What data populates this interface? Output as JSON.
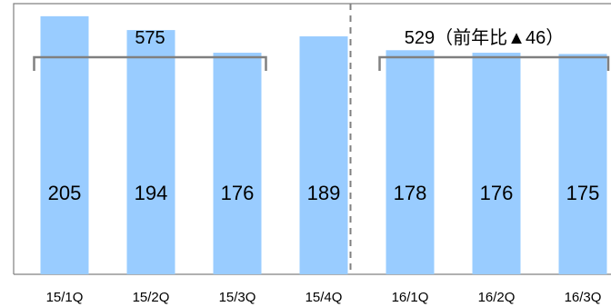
{
  "chart_data": {
    "type": "bar",
    "categories": [
      "15/1Q",
      "15/2Q",
      "15/3Q",
      "15/4Q",
      "16/1Q",
      "16/2Q",
      "16/3Q"
    ],
    "values": [
      205,
      194,
      176,
      189,
      178,
      176,
      175
    ],
    "ylim": [
      0,
      215
    ],
    "grid": false,
    "bar_color": "#99CCFF",
    "groups": [
      {
        "label": "575",
        "first": 0,
        "last": 2
      },
      {
        "label": "529（前年比▲46）",
        "first": 4,
        "last": 6
      }
    ],
    "divider_after_index": 3
  }
}
